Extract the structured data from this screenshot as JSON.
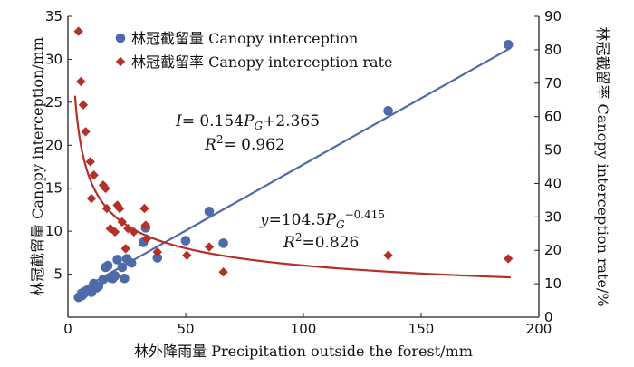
{
  "chart_data": {
    "type": "scatter",
    "xlabel": "林外降雨量 Precipitation outside the forest/mm",
    "ylabel_left": "林冠截留量 Canopy interception/mm",
    "ylabel_right": "林冠截留率 Canopy interception rate/%",
    "xlim": [
      0,
      200
    ],
    "ylim_left": [
      0,
      35
    ],
    "ylim_right": [
      0,
      90
    ],
    "x_ticks": [
      "0",
      "50",
      "100",
      "150",
      "200"
    ],
    "y_left_ticks": [
      "5",
      "10",
      "15",
      "20",
      "25",
      "30",
      "35"
    ],
    "y_right_ticks": [
      "0",
      "10",
      "20",
      "30",
      "40",
      "50",
      "60",
      "70",
      "80",
      "90"
    ],
    "legend": [
      {
        "name": "林冠截留量 Canopy interception",
        "marker": "circle",
        "color": "#4f6aa9"
      },
      {
        "name": "林冠截留率 Canopy interception rate",
        "marker": "diamond",
        "color": "#b4312a"
      }
    ],
    "series": [
      {
        "name": "林冠截留量 Canopy interception",
        "axis": "left",
        "marker": "circle",
        "color": "#4f6aa9",
        "points": [
          [
            4.5,
            2.3
          ],
          [
            5,
            2.4
          ],
          [
            6,
            2.5
          ],
          [
            7,
            2.8
          ],
          [
            8,
            3.0
          ],
          [
            9,
            3.1
          ],
          [
            10,
            2.9
          ],
          [
            11,
            3.3
          ],
          [
            11,
            3.9
          ],
          [
            12,
            3.4
          ],
          [
            13,
            3.6
          ],
          [
            15,
            4.4
          ],
          [
            16,
            5.8
          ],
          [
            17,
            6.0
          ],
          [
            18,
            4.6
          ],
          [
            19,
            4.5
          ],
          [
            20,
            4.8
          ],
          [
            21,
            6.7
          ],
          [
            23,
            5.8
          ],
          [
            24,
            4.5
          ],
          [
            25,
            6.8
          ],
          [
            27,
            6.3
          ],
          [
            32,
            8.7
          ],
          [
            33,
            10.4
          ],
          [
            38,
            6.9
          ],
          [
            50,
            8.9
          ],
          [
            60,
            12.3
          ],
          [
            66,
            8.6
          ],
          [
            136,
            24.0
          ],
          [
            187,
            31.7
          ]
        ]
      },
      {
        "name": "林冠截留率 Canopy interception rate",
        "axis": "right",
        "marker": "diamond",
        "color": "#b4312a",
        "points": [
          [
            4.5,
            85.5
          ],
          [
            5.5,
            70.5
          ],
          [
            6.5,
            63.5
          ],
          [
            7.5,
            55.5
          ],
          [
            9.5,
            46.5
          ],
          [
            10,
            35.5
          ],
          [
            11,
            42.5
          ],
          [
            15,
            39.5
          ],
          [
            16,
            38.5
          ],
          [
            16.5,
            32.5
          ],
          [
            18,
            26.5
          ],
          [
            20,
            25.5
          ],
          [
            21,
            33.5
          ],
          [
            22,
            32.5
          ],
          [
            23,
            28.5
          ],
          [
            24.5,
            20.5
          ],
          [
            25.5,
            26.5
          ],
          [
            28,
            25.5
          ],
          [
            32.5,
            32.5
          ],
          [
            33,
            27.5
          ],
          [
            33.5,
            23.5
          ],
          [
            38,
            19.5
          ],
          [
            50.5,
            18.5
          ],
          [
            60,
            21.0
          ],
          [
            66,
            13.5
          ],
          [
            136,
            18.5
          ],
          [
            187,
            17.5
          ]
        ]
      }
    ],
    "fits": [
      {
        "series": "林冠截留量 Canopy interception",
        "axis": "left",
        "form": "linear",
        "slope": 0.154,
        "intercept": 2.365,
        "x_range": [
          4,
          188
        ],
        "color": "#4f6aa9"
      },
      {
        "series": "林冠截留率 Canopy interception rate",
        "axis": "right",
        "form": "power",
        "coef": 104.5,
        "exp": -0.415,
        "x_range": [
          3,
          188
        ],
        "color": "#b4312a"
      }
    ],
    "annotations": [
      {
        "lines": [
          [
            {
              "t": "I",
              "i": true
            },
            {
              "t": "= 0.154"
            },
            {
              "t": "P",
              "i": true
            },
            {
              "t": "G",
              "i": true,
              "sub": true
            },
            {
              "t": "+2.365"
            }
          ],
          [
            {
              "t": "R",
              "i": true
            },
            {
              "t": "2",
              "sup": true
            },
            {
              "t": "= 0.962"
            }
          ]
        ]
      },
      {
        "lines": [
          [
            {
              "t": "y",
              "i": true
            },
            {
              "t": "=104.5"
            },
            {
              "t": "P",
              "i": true
            },
            {
              "t": "G",
              "i": true,
              "sub": true
            },
            {
              "t": "−0.415",
              "sup": true
            }
          ],
          [
            {
              "t": "R",
              "i": true
            },
            {
              "t": "2",
              "sup": true
            },
            {
              "t": "=0.826"
            }
          ]
        ]
      }
    ]
  }
}
